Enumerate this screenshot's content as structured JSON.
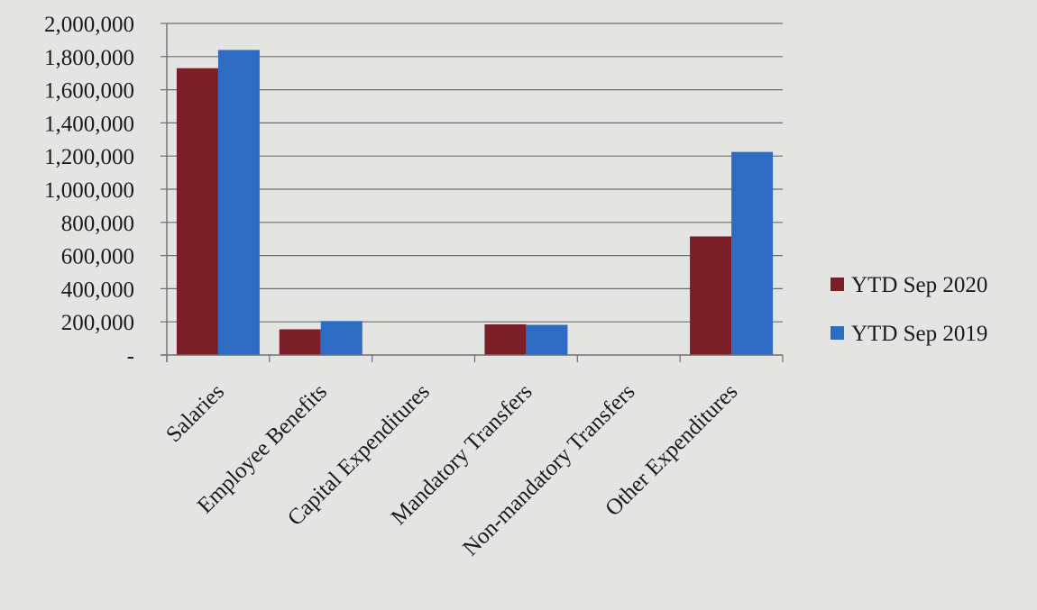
{
  "chart_data": {
    "type": "bar",
    "categories": [
      "Salaries",
      "Employee Benefits",
      "Capital Expenditures",
      "Mandatory Transfers",
      "Non-mandatory Transfers",
      "Other Expenditures"
    ],
    "series": [
      {
        "name": "YTD Sep 2020",
        "values": [
          1730000,
          155000,
          0,
          185000,
          0,
          715000
        ]
      },
      {
        "name": "YTD Sep 2019",
        "values": [
          1840000,
          205000,
          0,
          182000,
          0,
          1225000
        ]
      }
    ],
    "yticks": [
      {
        "value": 0,
        "label": "-"
      },
      {
        "value": 200000,
        "label": "200,000"
      },
      {
        "value": 400000,
        "label": "400,000"
      },
      {
        "value": 600000,
        "label": "600,000"
      },
      {
        "value": 800000,
        "label": "800,000"
      },
      {
        "value": 1000000,
        "label": "1,000,000"
      },
      {
        "value": 1200000,
        "label": "1,200,000"
      },
      {
        "value": 1400000,
        "label": "1,400,000"
      },
      {
        "value": 1600000,
        "label": "1,600,000"
      },
      {
        "value": 1800000,
        "label": "1,800,000"
      },
      {
        "value": 2000000,
        "label": "2,000,000"
      }
    ],
    "ylim": [
      0,
      2000000
    ],
    "grid": true,
    "legend_position": "right",
    "colors": [
      "#7a1f28",
      "#2e6cc4"
    ]
  }
}
